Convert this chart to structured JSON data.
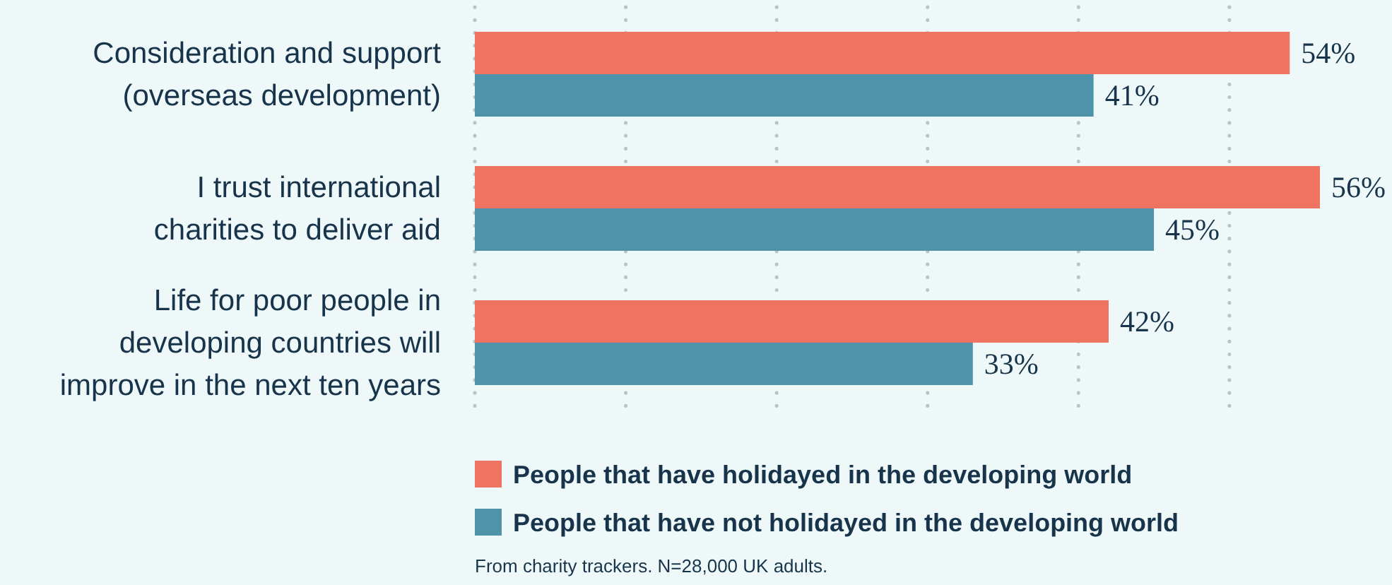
{
  "chart_data": {
    "type": "bar",
    "orientation": "horizontal",
    "categories": [
      "Consideration and support (overseas development)",
      "I trust international charities to deliver aid",
      "Life for poor people in developing countries will improve in the next ten years"
    ],
    "series": [
      {
        "name": "People that have holidayed in the developing world",
        "color": "#ee7361",
        "values": [
          54,
          56,
          42
        ],
        "value_labels": [
          "54%",
          "56%",
          "42%"
        ]
      },
      {
        "name": "People that have not holidayed in the developing world",
        "color": "#4e93aa",
        "values": [
          41,
          45,
          33
        ],
        "value_labels": [
          "41%",
          "45%",
          "33%"
        ]
      }
    ],
    "grid": "x",
    "tick_labels": "y",
    "legend": "bottom",
    "annotations": [
      "From charity trackers. N=28,000 UK adults."
    ]
  }
}
